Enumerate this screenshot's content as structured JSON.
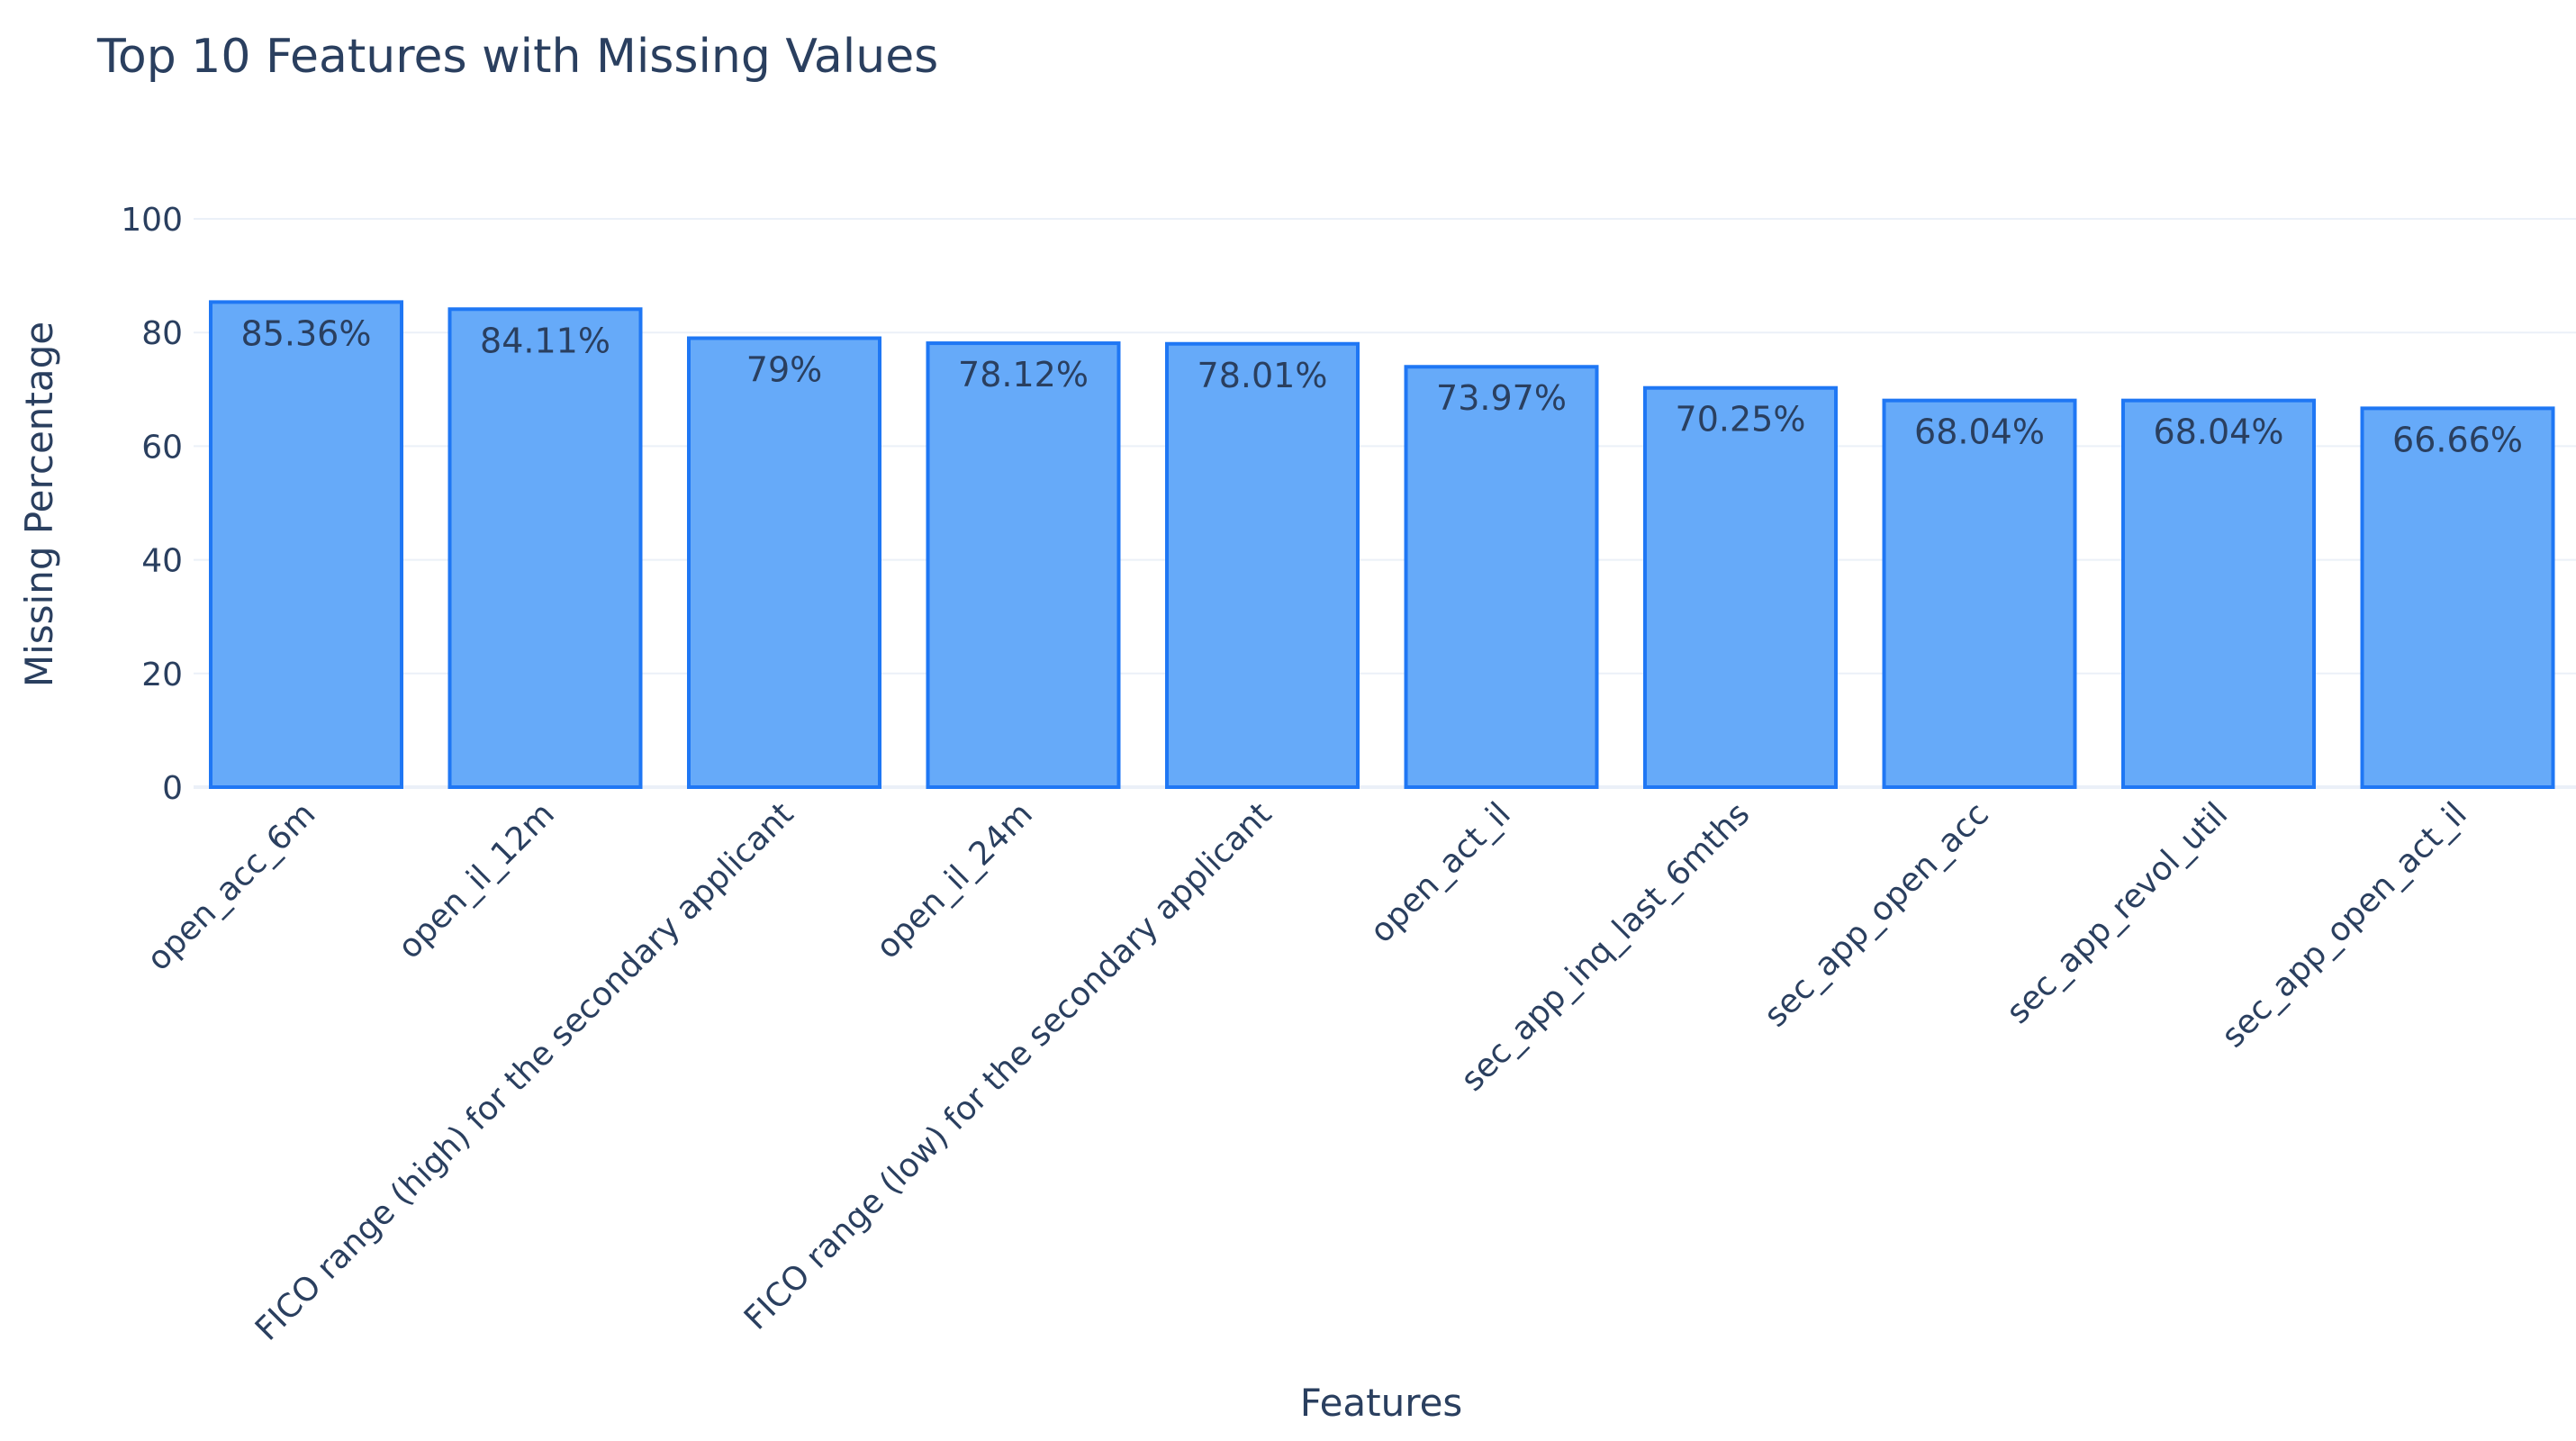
{
  "chart_data": {
    "type": "bar",
    "title": "Top 10 Features with Missing Values",
    "xlabel": "Features",
    "ylabel": "Missing Percentage",
    "categories": [
      "open_acc_6m",
      "open_il_12m",
      "FICO range (high) for the secondary applicant",
      "open_il_24m",
      "FICO range (low) for the secondary applicant",
      "open_act_il",
      "sec_app_inq_last_6mths",
      "sec_app_open_acc",
      "sec_app_revol_util",
      "sec_app_open_act_il"
    ],
    "values": [
      85.36,
      84.11,
      79,
      78.12,
      78.01,
      73.97,
      70.25,
      68.04,
      68.04,
      66.66
    ],
    "data_labels": [
      "85.36%",
      "84.11%",
      "79%",
      "78.12%",
      "78.01%",
      "73.97%",
      "70.25%",
      "68.04%",
      "68.04%",
      "66.66%"
    ],
    "ylim": [
      0,
      100
    ],
    "yticks": [
      0,
      20,
      40,
      60,
      80,
      100
    ],
    "grid": true,
    "colors": {
      "bar_fill": "#66aaf9",
      "bar_stroke": "#1f77f4",
      "text": "#2a3f5f",
      "grid": "#ebf0f8"
    }
  }
}
